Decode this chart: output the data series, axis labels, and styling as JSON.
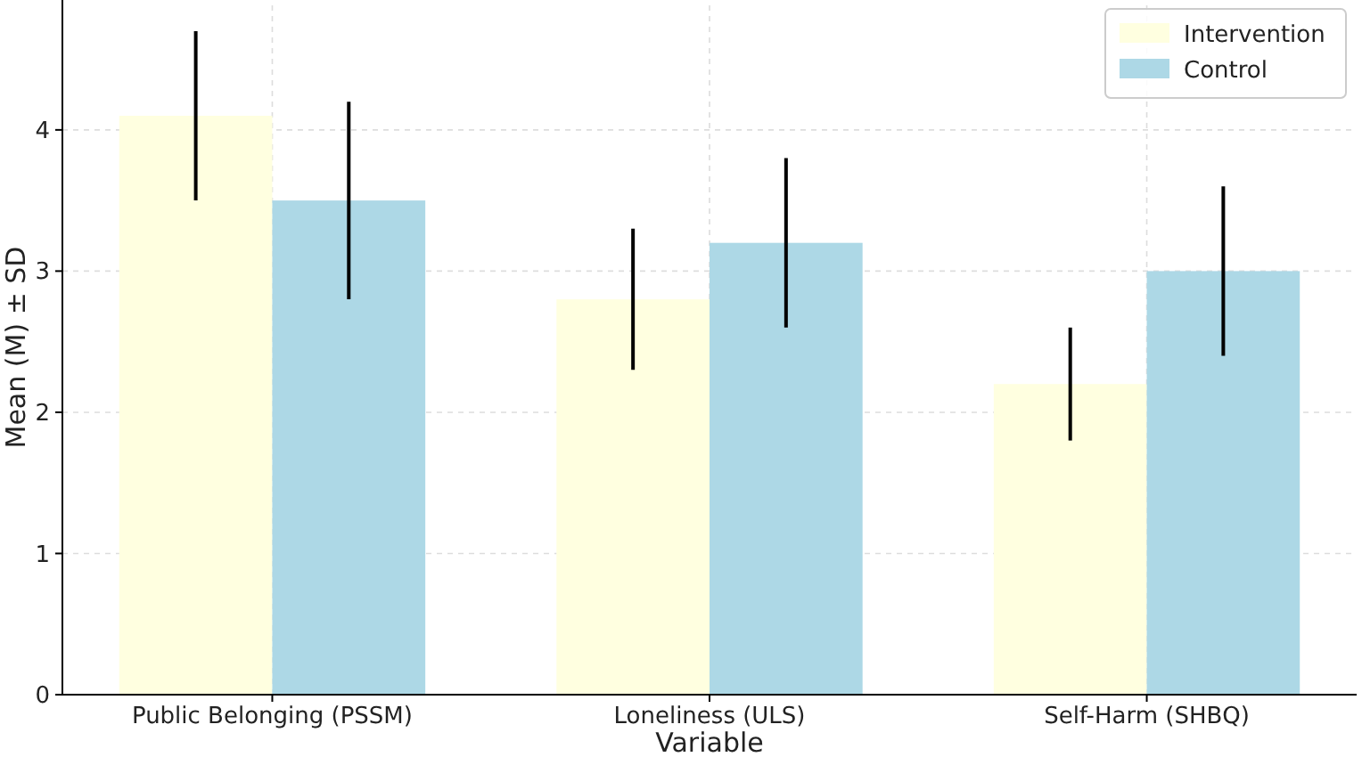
{
  "chart_data": {
    "type": "bar",
    "xlabel": "Variable",
    "ylabel": "Mean (M) ± SD",
    "categories": [
      "Public Belonging (PSSM)",
      "Loneliness (ULS)",
      "Self-Harm (SHBQ)"
    ],
    "series": [
      {
        "name": "Intervention",
        "color": "#ffffe0",
        "values": [
          4.1,
          2.8,
          2.2
        ],
        "errors": [
          0.6,
          0.5,
          0.4
        ]
      },
      {
        "name": "Control",
        "color": "#add8e6",
        "values": [
          3.5,
          3.2,
          3.0
        ],
        "errors": [
          0.7,
          0.6,
          0.6
        ]
      }
    ],
    "ylim": [
      0,
      4.92
    ],
    "yticks": [
      0,
      1,
      2,
      3,
      4
    ],
    "grid": true,
    "legend": "top right"
  }
}
